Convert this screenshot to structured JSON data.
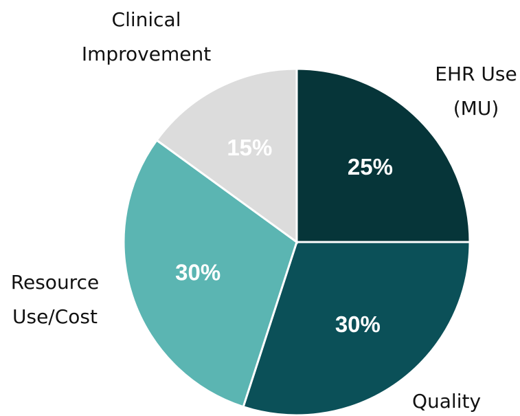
{
  "chart_data": {
    "type": "pie",
    "categories": [
      "EHR Use\n(MU)",
      "Quality",
      "Resource\nUse/Cost",
      "Clinical\nImprovement"
    ],
    "values": [
      25,
      30,
      30,
      15
    ],
    "value_labels": [
      "25%",
      "30%",
      "30%",
      "15%"
    ],
    "colors": [
      "#063539",
      "#0b5058",
      "#5bb5b2",
      "#dcdcdc"
    ]
  }
}
